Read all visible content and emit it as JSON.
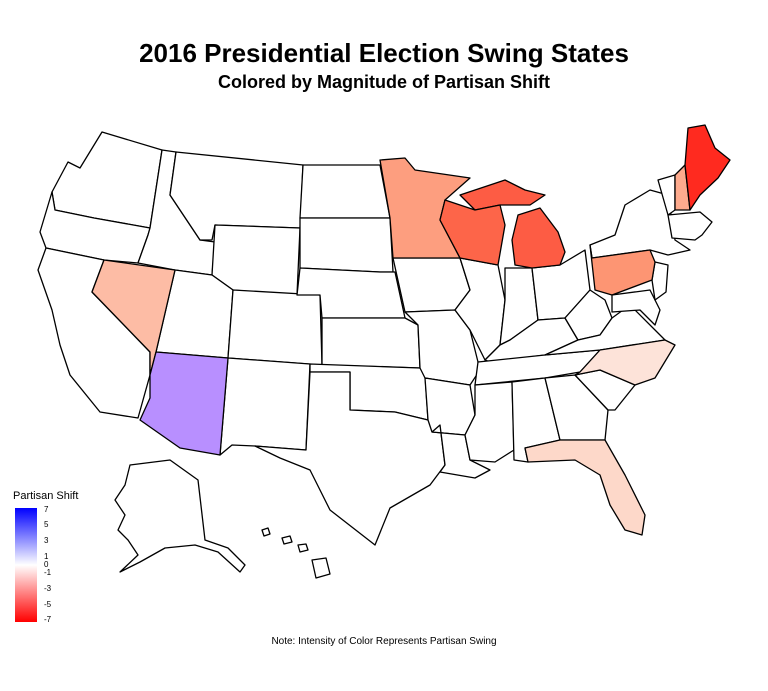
{
  "title": "2016 Presidential Election Swing States",
  "subtitle": "Colored by Magnitude of Partisan Shift",
  "caption": "Note: Intensity of Color Represents Partisan Swing",
  "legend": {
    "title": "Partisan Shift",
    "ticks": [
      "7",
      "5",
      "3",
      "1",
      "0",
      "-1",
      "-3",
      "-5",
      "-7"
    ],
    "colors": {
      "max": "#0000ff",
      "mid": "#ffffff",
      "min": "#ff0000"
    }
  },
  "states": [
    {
      "name": "Maine",
      "color": "#ff2a1f"
    },
    {
      "name": "Michigan",
      "color": "#fd5c44"
    },
    {
      "name": "Wisconsin",
      "color": "#fd6549"
    },
    {
      "name": "Pennsylvania",
      "color": "#fd9573"
    },
    {
      "name": "Minnesota",
      "color": "#fd9e7f"
    },
    {
      "name": "New Hampshire",
      "color": "#fdaa8d"
    },
    {
      "name": "Nevada",
      "color": "#fdbca5"
    },
    {
      "name": "Florida",
      "color": "#fdd8c9"
    },
    {
      "name": "North Carolina",
      "color": "#fde3d9"
    },
    {
      "name": "Arizona",
      "color": "#b88fff"
    }
  ]
}
